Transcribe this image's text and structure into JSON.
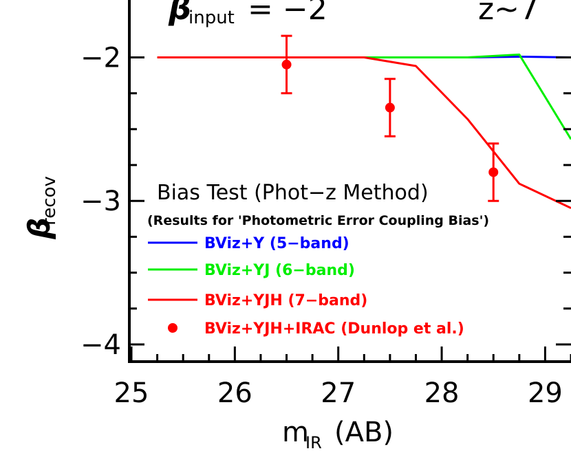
{
  "chart_data": {
    "type": "line",
    "header_left": {
      "symbol": "β",
      "subscript": "input",
      "rest": "=  −2"
    },
    "header_right": "z~7",
    "xlabel": {
      "main": "m",
      "sub": "IR",
      "suffix": "(AB)"
    },
    "ylabel": {
      "main": "β",
      "sub": "recov"
    },
    "xlim": [
      24.98,
      29.25
    ],
    "ylim": [
      -4.12,
      -1.6
    ],
    "x_ticks": [
      25,
      26,
      27,
      28,
      29
    ],
    "y_ticks": [
      -2,
      -3,
      -4
    ],
    "x_tick_labels": [
      "25",
      "26",
      "27",
      "28",
      "29"
    ],
    "y_tick_labels": [
      "−2",
      "−3",
      "−4"
    ],
    "legend_title": "Bias Test (Phot−z Method)",
    "legend_subtitle": "(Results for 'Photometric Error Coupling Bias')",
    "series": [
      {
        "name": "BViz+Y (5-band)",
        "label": "BViz+Y (5−band)",
        "color": "#0000ff",
        "x": [
          25.25,
          25.75,
          26.25,
          26.75,
          27.25,
          27.75,
          28.25,
          28.75,
          29.25
        ],
        "y": [
          -2.0,
          -2.0,
          -2.0,
          -2.0,
          -2.0,
          -2.0,
          -2.0,
          -1.995,
          -2.0
        ]
      },
      {
        "name": "BViz+YJ (6-band)",
        "label": "BViz+YJ (6−band)",
        "color": "#00ee00",
        "x": [
          25.25,
          25.75,
          26.25,
          26.75,
          27.25,
          27.75,
          28.25,
          28.75,
          29.25
        ],
        "y": [
          -2.0,
          -2.0,
          -2.0,
          -2.0,
          -2.0,
          -2.0,
          -2.0,
          -1.98,
          -2.57
        ]
      },
      {
        "name": "BViz+YJH (7-band)",
        "label": "BViz+YJH (7−band)",
        "color": "#ff0000",
        "x": [
          25.25,
          25.75,
          26.25,
          26.75,
          27.25,
          27.75,
          28.25,
          28.75,
          29.25
        ],
        "y": [
          -2.0,
          -2.0,
          -2.0,
          -2.0,
          -2.0,
          -2.06,
          -2.43,
          -2.88,
          -3.05
        ]
      }
    ],
    "points": {
      "name": "BViz+YJH+IRAC (Dunlop et al.)",
      "label": "BViz+YJH+IRAC (Dunlop et al.)",
      "color": "#ff0000",
      "x": [
        26.5,
        27.5,
        28.5
      ],
      "y": [
        -2.05,
        -2.35,
        -2.8
      ],
      "yerr": [
        0.2,
        0.2,
        0.2
      ]
    }
  }
}
